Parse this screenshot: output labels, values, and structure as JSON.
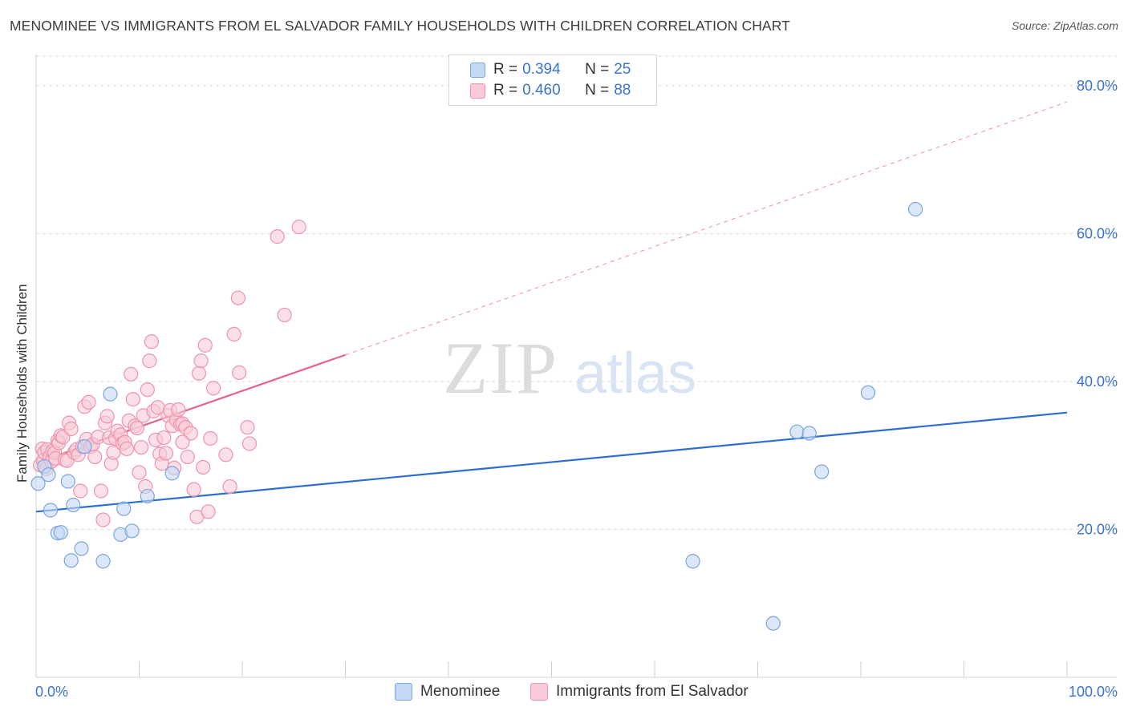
{
  "title": "MENOMINEE VS IMMIGRANTS FROM EL SALVADOR FAMILY HOUSEHOLDS WITH CHILDREN CORRELATION CHART",
  "source": "Source: ZipAtlas.com",
  "watermark": {
    "zip": "ZIP",
    "atlas": "atlas"
  },
  "legend_top": [
    {
      "r_label": "R =",
      "r_value": "0.394",
      "n_label": "N =",
      "n_value": "25"
    },
    {
      "r_label": "R =",
      "r_value": "0.460",
      "n_label": "N =",
      "n_value": "88"
    }
  ],
  "colors": {
    "blue_fill": "#c5d9f5",
    "blue_stroke": "#7aa6e0",
    "blue_line": "#2d6fd1",
    "pink_fill": "#f9cbd8",
    "pink_stroke": "#ee93ae",
    "pink_line": "#e5638d",
    "tick_text": "#3b73d1",
    "grid": "#dddddd"
  },
  "chart_data": {
    "type": "scatter",
    "title": "MENOMINEE VS IMMIGRANTS FROM EL SALVADOR FAMILY HOUSEHOLDS WITH CHILDREN CORRELATION CHART",
    "xlabel": "",
    "ylabel": "Family Households with Children",
    "xlim": [
      0,
      100
    ],
    "ylim": [
      0,
      84
    ],
    "x_tick_labels": [
      {
        "value": 0,
        "label": "0.0%"
      },
      {
        "value": 100,
        "label": "100.0%"
      }
    ],
    "y_tick_labels": [
      {
        "value": 20,
        "label": "20.0%"
      },
      {
        "value": 40,
        "label": "40.0%"
      },
      {
        "value": 60,
        "label": "60.0%"
      },
      {
        "value": 80,
        "label": "80.0%"
      }
    ],
    "x_minor_ticks": [
      0,
      10,
      20,
      30,
      40,
      50,
      60,
      70,
      80,
      90,
      100
    ],
    "series": [
      {
        "name": "Menominee",
        "r": 0.394,
        "n": 25,
        "trend": {
          "x0": 0,
          "y0": 22.4,
          "x1": 100,
          "y1": 35.8,
          "dashed_to": null
        },
        "points": [
          [
            0.2,
            26.2
          ],
          [
            0.8,
            28.5
          ],
          [
            1.2,
            27.4
          ],
          [
            1.4,
            22.6
          ],
          [
            2.1,
            19.5
          ],
          [
            2.4,
            19.6
          ],
          [
            3.1,
            26.5
          ],
          [
            3.4,
            15.8
          ],
          [
            3.6,
            23.3
          ],
          [
            4.4,
            17.4
          ],
          [
            4.7,
            31.2
          ],
          [
            6.5,
            15.7
          ],
          [
            7.2,
            38.3
          ],
          [
            8.2,
            19.3
          ],
          [
            8.5,
            22.8
          ],
          [
            9.3,
            19.8
          ],
          [
            10.8,
            24.5
          ],
          [
            13.2,
            27.6
          ],
          [
            63.7,
            15.7
          ],
          [
            71.5,
            7.3
          ],
          [
            73.8,
            33.2
          ],
          [
            75.0,
            33.0
          ],
          [
            76.2,
            27.8
          ],
          [
            80.7,
            38.5
          ],
          [
            85.3,
            63.3
          ]
        ]
      },
      {
        "name": "Immigrants from El Salvador",
        "r": 0.46,
        "n": 88,
        "trend": {
          "x0": 0,
          "y0": 29.0,
          "x1": 30,
          "y1": 43.6,
          "dashed_to": {
            "x": 100,
            "y": 77.8
          }
        },
        "points": [
          [
            0.4,
            28.7
          ],
          [
            0.6,
            30.9
          ],
          [
            0.7,
            29.3
          ],
          [
            0.8,
            30.4
          ],
          [
            1.0,
            28.2
          ],
          [
            1.1,
            30.8
          ],
          [
            1.3,
            29.8
          ],
          [
            1.5,
            29.2
          ],
          [
            1.6,
            30.6
          ],
          [
            1.8,
            30.4
          ],
          [
            1.9,
            29.6
          ],
          [
            2.1,
            32.0
          ],
          [
            2.2,
            31.7
          ],
          [
            2.4,
            32.7
          ],
          [
            2.6,
            32.5
          ],
          [
            2.8,
            29.4
          ],
          [
            3.0,
            29.3
          ],
          [
            3.2,
            34.4
          ],
          [
            3.4,
            33.6
          ],
          [
            3.7,
            30.4
          ],
          [
            3.9,
            30.8
          ],
          [
            4.1,
            30.1
          ],
          [
            4.3,
            25.2
          ],
          [
            4.5,
            31.2
          ],
          [
            4.7,
            36.6
          ],
          [
            4.9,
            32.2
          ],
          [
            5.1,
            37.2
          ],
          [
            5.3,
            31.2
          ],
          [
            5.5,
            31.5
          ],
          [
            5.7,
            29.8
          ],
          [
            6.0,
            32.5
          ],
          [
            6.3,
            25.2
          ],
          [
            6.5,
            21.3
          ],
          [
            6.7,
            34.4
          ],
          [
            6.9,
            35.3
          ],
          [
            7.1,
            32.4
          ],
          [
            7.3,
            28.9
          ],
          [
            7.5,
            30.4
          ],
          [
            7.7,
            32.3
          ],
          [
            7.9,
            33.3
          ],
          [
            8.2,
            32.8
          ],
          [
            8.4,
            31.6
          ],
          [
            8.6,
            31.8
          ],
          [
            8.8,
            30.9
          ],
          [
            9.0,
            34.7
          ],
          [
            9.2,
            41.0
          ],
          [
            9.4,
            37.6
          ],
          [
            9.6,
            34.0
          ],
          [
            9.8,
            33.7
          ],
          [
            10.0,
            27.7
          ],
          [
            10.2,
            31.1
          ],
          [
            10.4,
            35.4
          ],
          [
            10.6,
            25.8
          ],
          [
            10.8,
            38.9
          ],
          [
            11.0,
            42.8
          ],
          [
            11.2,
            45.4
          ],
          [
            11.4,
            36.0
          ],
          [
            11.6,
            32.1
          ],
          [
            11.8,
            36.5
          ],
          [
            12.0,
            30.2
          ],
          [
            12.2,
            28.9
          ],
          [
            12.4,
            32.4
          ],
          [
            12.6,
            30.3
          ],
          [
            12.8,
            35.4
          ],
          [
            13.0,
            36.1
          ],
          [
            13.2,
            34.0
          ],
          [
            13.4,
            28.3
          ],
          [
            13.6,
            34.8
          ],
          [
            13.8,
            36.2
          ],
          [
            14.0,
            34.2
          ],
          [
            14.2,
            34.3
          ],
          [
            14.5,
            33.8
          ],
          [
            14.7,
            29.8
          ],
          [
            15.0,
            33.0
          ],
          [
            15.3,
            25.4
          ],
          [
            15.6,
            21.7
          ],
          [
            15.8,
            41.1
          ],
          [
            16.0,
            42.8
          ],
          [
            16.2,
            28.4
          ],
          [
            16.4,
            44.9
          ],
          [
            16.7,
            22.4
          ],
          [
            16.9,
            32.3
          ],
          [
            17.2,
            39.1
          ],
          [
            18.4,
            30.1
          ],
          [
            18.8,
            25.8
          ],
          [
            19.2,
            46.4
          ],
          [
            19.6,
            51.3
          ],
          [
            23.4,
            59.6
          ]
        ]
      }
    ],
    "extra_pink_points": [
      [
        19.7,
        41.2
      ],
      [
        20.5,
        33.8
      ],
      [
        20.7,
        31.6
      ],
      [
        24.1,
        49.0
      ],
      [
        25.5,
        60.9
      ],
      [
        14.2,
        31.8
      ]
    ]
  },
  "legend_bottom": [
    "Menominee",
    "Immigrants from El Salvador"
  ]
}
